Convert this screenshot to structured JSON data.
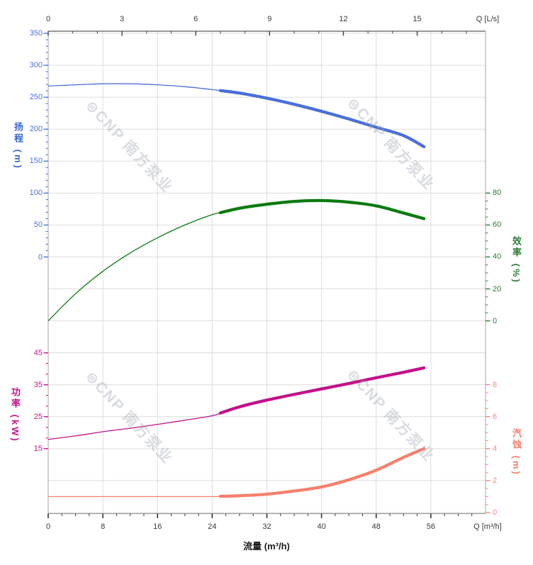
{
  "chart_data": {
    "type": "line",
    "title": "",
    "x_unit": "m³/h",
    "x": [
      0,
      4,
      8,
      12,
      16,
      20,
      24,
      28,
      32,
      36,
      40,
      44,
      48,
      52,
      55
    ],
    "series": [
      {
        "name": "扬程",
        "unit": "m",
        "axis": "head",
        "color": "#4a6fd9",
        "values": [
          267.5,
          269.5,
          271,
          271,
          269.5,
          266.5,
          262,
          256.5,
          248.5,
          239,
          228,
          216,
          203,
          190,
          172.5
        ]
      },
      {
        "name": "效率",
        "unit": "%",
        "axis": "eff",
        "color": "#0c7a10",
        "values": [
          0,
          17,
          31,
          42.5,
          52,
          60,
          66.5,
          70.5,
          73,
          74.8,
          75.3,
          74.3,
          72,
          67.5,
          64
        ]
      },
      {
        "name": "功率",
        "unit": "kW",
        "axis": "power",
        "color": "#c31289",
        "values": [
          17.9,
          19.0,
          20.3,
          21.4,
          22.6,
          23.9,
          25.3,
          28.1,
          30.2,
          32.0,
          33.7,
          35.4,
          37.2,
          38.9,
          40.3
        ]
      },
      {
        "name": "汽蚀",
        "unit": "m",
        "axis": "npsh",
        "color": "#f5806d",
        "values": [
          1.0,
          1.0,
          1.0,
          1.0,
          1.0,
          1.0,
          1.0,
          1.05,
          1.15,
          1.35,
          1.6,
          2.05,
          2.65,
          3.45,
          4.0
        ]
      }
    ],
    "duty_range_start_q": 25.2,
    "axes": {
      "top": {
        "label": "Q [L/s]",
        "majors": [
          0,
          3,
          6,
          9,
          12,
          15
        ],
        "minor_step": 1,
        "color": "#3a3a3a"
      },
      "bottom": {
        "label": "Q [m³/h]",
        "title": "流量 (m³/h)",
        "majors": [
          0,
          8,
          16,
          24,
          32,
          40,
          48,
          56
        ],
        "minor_step": 2,
        "color": "#3a3a3a"
      },
      "head": {
        "title": "扬程 (m)",
        "majors": [
          350,
          300,
          250,
          200,
          150,
          100,
          50,
          0
        ],
        "minor_step": 10,
        "color": "#4a72d8"
      },
      "eff": {
        "title": "效率 (%)",
        "majors": [
          80,
          60,
          40,
          20,
          0
        ],
        "minor_step": 5,
        "color": "#2e7d36"
      },
      "power": {
        "title": "功率 (kW)",
        "majors": [
          45,
          35,
          25,
          15
        ],
        "minor_step": 3.333,
        "color": "#c0148c"
      },
      "npsh": {
        "title": "汽蚀 (m)",
        "majors": [
          8,
          6,
          4,
          2,
          0
        ],
        "minor_step": 0.5,
        "color": "#f58878"
      }
    },
    "grid_color": "#dcdcdc",
    "watermark": "⊜CNP 南方泵业"
  }
}
